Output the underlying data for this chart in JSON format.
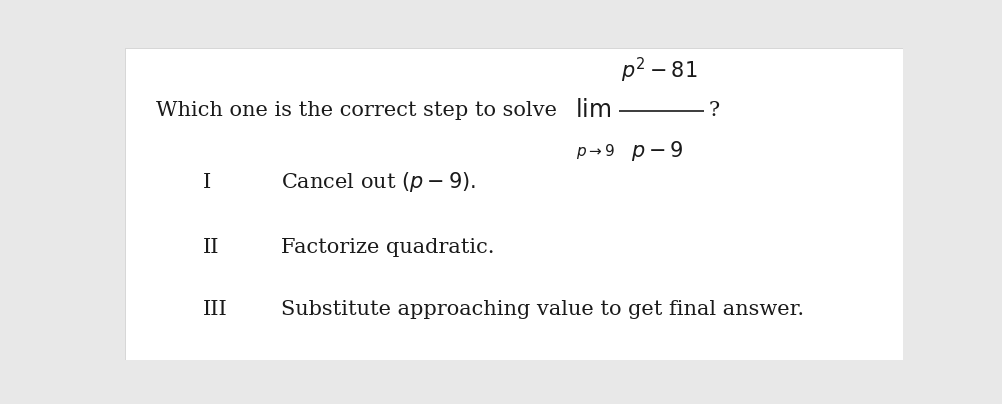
{
  "bg_color": "#e8e8e8",
  "panel_color": "#ffffff",
  "text_color": "#1a1a1a",
  "roman_I": "I",
  "roman_II": "II",
  "roman_III": "III",
  "answer_II": "Factorize quadratic.",
  "answer_III": "Substitute approaching value to get final answer.",
  "fontsize_question": 15,
  "fontsize_answers": 15,
  "fontsize_roman": 15
}
